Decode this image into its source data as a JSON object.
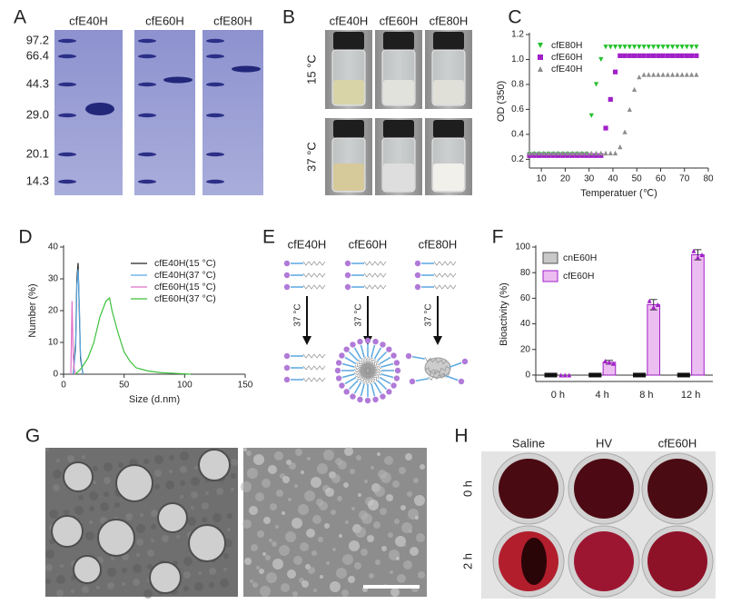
{
  "gel": {
    "panel": "A",
    "lanes": [
      "cfE40H",
      "cfE60H",
      "cfE80H"
    ],
    "markers": [
      "97.2",
      "66.4",
      "44.3",
      "29.0",
      "20.1",
      "14.3"
    ]
  },
  "vials": {
    "panel": "B",
    "samples": [
      "cfE40H",
      "cfE60H",
      "cfE80H"
    ],
    "temperatures": [
      "15 °C",
      "37 °C"
    ]
  },
  "schematic": {
    "panel": "E",
    "samples": [
      "cfE40H",
      "cfE60H",
      "cfE80H"
    ],
    "arrows": [
      "37 °C",
      "37 °C",
      "37 °C"
    ]
  },
  "tem": {
    "panel": "G"
  },
  "blood": {
    "panel": "H",
    "samples": [
      "Saline",
      "HV",
      "cfE60H"
    ],
    "times": [
      "0 h",
      "2 h"
    ]
  },
  "chart_data": [
    {
      "panel": "C",
      "type": "scatter",
      "x_label": "Temperatuer (℃)",
      "y_label": "OD (350)",
      "x": [
        5,
        7,
        9,
        11,
        13,
        15,
        17,
        19,
        21,
        23,
        25,
        27,
        29,
        31,
        33,
        35,
        37,
        39,
        41,
        43,
        45,
        47,
        49,
        51,
        53,
        55,
        57,
        59,
        61,
        63,
        65,
        67,
        69,
        71,
        73,
        75
      ],
      "series": [
        {
          "name": "cfE80H",
          "color": "#22c02b",
          "marker": "triangle-down",
          "values": [
            0.24,
            0.24,
            0.24,
            0.24,
            0.24,
            0.24,
            0.24,
            0.24,
            0.24,
            0.24,
            0.24,
            0.24,
            0.24,
            0.55,
            0.8,
            1.0,
            1.1,
            1.1,
            1.1,
            1.1,
            1.1,
            1.1,
            1.1,
            1.1,
            1.1,
            1.1,
            1.1,
            1.1,
            1.1,
            1.1,
            1.1,
            1.1,
            1.1,
            1.1,
            1.1,
            1.1
          ]
        },
        {
          "name": "cfE60H",
          "color": "#a020c8",
          "marker": "square",
          "values": [
            0.23,
            0.23,
            0.23,
            0.23,
            0.23,
            0.23,
            0.23,
            0.23,
            0.23,
            0.23,
            0.23,
            0.23,
            0.23,
            0.23,
            0.23,
            0.23,
            0.45,
            0.68,
            0.9,
            1.03,
            1.03,
            1.03,
            1.03,
            1.03,
            1.03,
            1.03,
            1.03,
            1.03,
            1.03,
            1.03,
            1.03,
            1.03,
            1.03,
            1.03,
            1.03,
            1.03
          ]
        },
        {
          "name": "cfE40H",
          "color": "#8c8c8c",
          "marker": "triangle-up",
          "values": [
            0.25,
            0.25,
            0.25,
            0.25,
            0.25,
            0.25,
            0.25,
            0.25,
            0.25,
            0.25,
            0.25,
            0.25,
            0.25,
            0.25,
            0.25,
            0.25,
            0.25,
            0.25,
            0.25,
            0.3,
            0.42,
            0.6,
            0.76,
            0.86,
            0.88,
            0.88,
            0.88,
            0.88,
            0.88,
            0.88,
            0.88,
            0.88,
            0.88,
            0.88,
            0.88,
            0.88
          ]
        }
      ],
      "xlim": [
        5,
        80
      ],
      "xticks": [
        10,
        20,
        30,
        40,
        50,
        60,
        70,
        80
      ],
      "ylim": [
        0.13,
        1.2
      ],
      "yticks": [
        0.2,
        0.4,
        0.6,
        0.8,
        {
          "value": 1,
          "label": "1.0"
        },
        1.2
      ],
      "legend": "upper left"
    },
    {
      "panel": "D",
      "type": "line",
      "x_label": "Size (d.nm)",
      "y_label": "Number (%)",
      "series": [
        {
          "name": "cfE40H(15 °C)",
          "color": "#222222",
          "x": [
            8,
            10,
            11,
            12,
            13,
            14,
            16
          ],
          "values": [
            0,
            10,
            30,
            35,
            20,
            5,
            0
          ]
        },
        {
          "name": "cfE40H(37 °C)",
          "color": "#5aa7e0",
          "x": [
            8,
            10,
            11,
            12,
            13,
            14,
            16
          ],
          "values": [
            0,
            8,
            28,
            33,
            22,
            6,
            0
          ]
        },
        {
          "name": "cfE60H(15 °C)",
          "color": "#e070c8",
          "x": [
            6,
            7,
            8,
            9,
            10
          ],
          "values": [
            0,
            23,
            5,
            1,
            0
          ]
        },
        {
          "name": "cfE60H(37 °C)",
          "color": "#3cc03c",
          "x": [
            10,
            15,
            20,
            25,
            30,
            35,
            38,
            40,
            45,
            50,
            55,
            60,
            70,
            80,
            90,
            100,
            105
          ],
          "values": [
            0,
            2,
            5,
            10,
            18,
            23,
            24,
            20,
            13,
            7,
            4,
            2,
            1,
            0.5,
            0.3,
            0.1,
            0
          ]
        }
      ],
      "xlim": [
        0,
        150
      ],
      "xticks": [
        0,
        50,
        100,
        150
      ],
      "ylim": [
        0,
        40
      ],
      "yticks": [
        0,
        10,
        20,
        30,
        40
      ],
      "legend": "upper right"
    },
    {
      "panel": "F",
      "type": "bar",
      "y_label": "Bioactivity (%)",
      "categories": [
        "0 h",
        "4 h",
        "8 h",
        "12 h"
      ],
      "series": [
        {
          "name": "cnE60H",
          "color": "#c8c8c8",
          "edge": "#555555",
          "marker": "square",
          "marker_color": "#111111",
          "values": [
            0,
            0,
            0,
            0
          ],
          "errors": [
            0,
            0,
            0,
            0
          ],
          "replicates": [
            [
              0,
              0,
              0
            ],
            [
              0,
              0,
              0
            ],
            [
              0,
              0,
              0
            ],
            [
              0,
              0,
              0
            ]
          ]
        },
        {
          "name": "cfE60H",
          "color": "#ecbdf0",
          "edge": "#a020c8",
          "marker": "triangle-up",
          "marker_color": "#a020c8",
          "values": [
            0,
            10,
            55,
            94
          ],
          "errors": [
            0,
            1.5,
            4,
            4
          ],
          "replicates": [
            [
              0,
              0,
              0
            ],
            [
              11,
              10,
              9
            ],
            [
              58,
              53,
              55
            ],
            [
              97,
              92,
              94
            ]
          ]
        }
      ],
      "ylim": [
        -5,
        100
      ],
      "yticks": [
        0,
        20,
        40,
        60,
        80,
        100
      ],
      "legend": "upper left"
    }
  ]
}
